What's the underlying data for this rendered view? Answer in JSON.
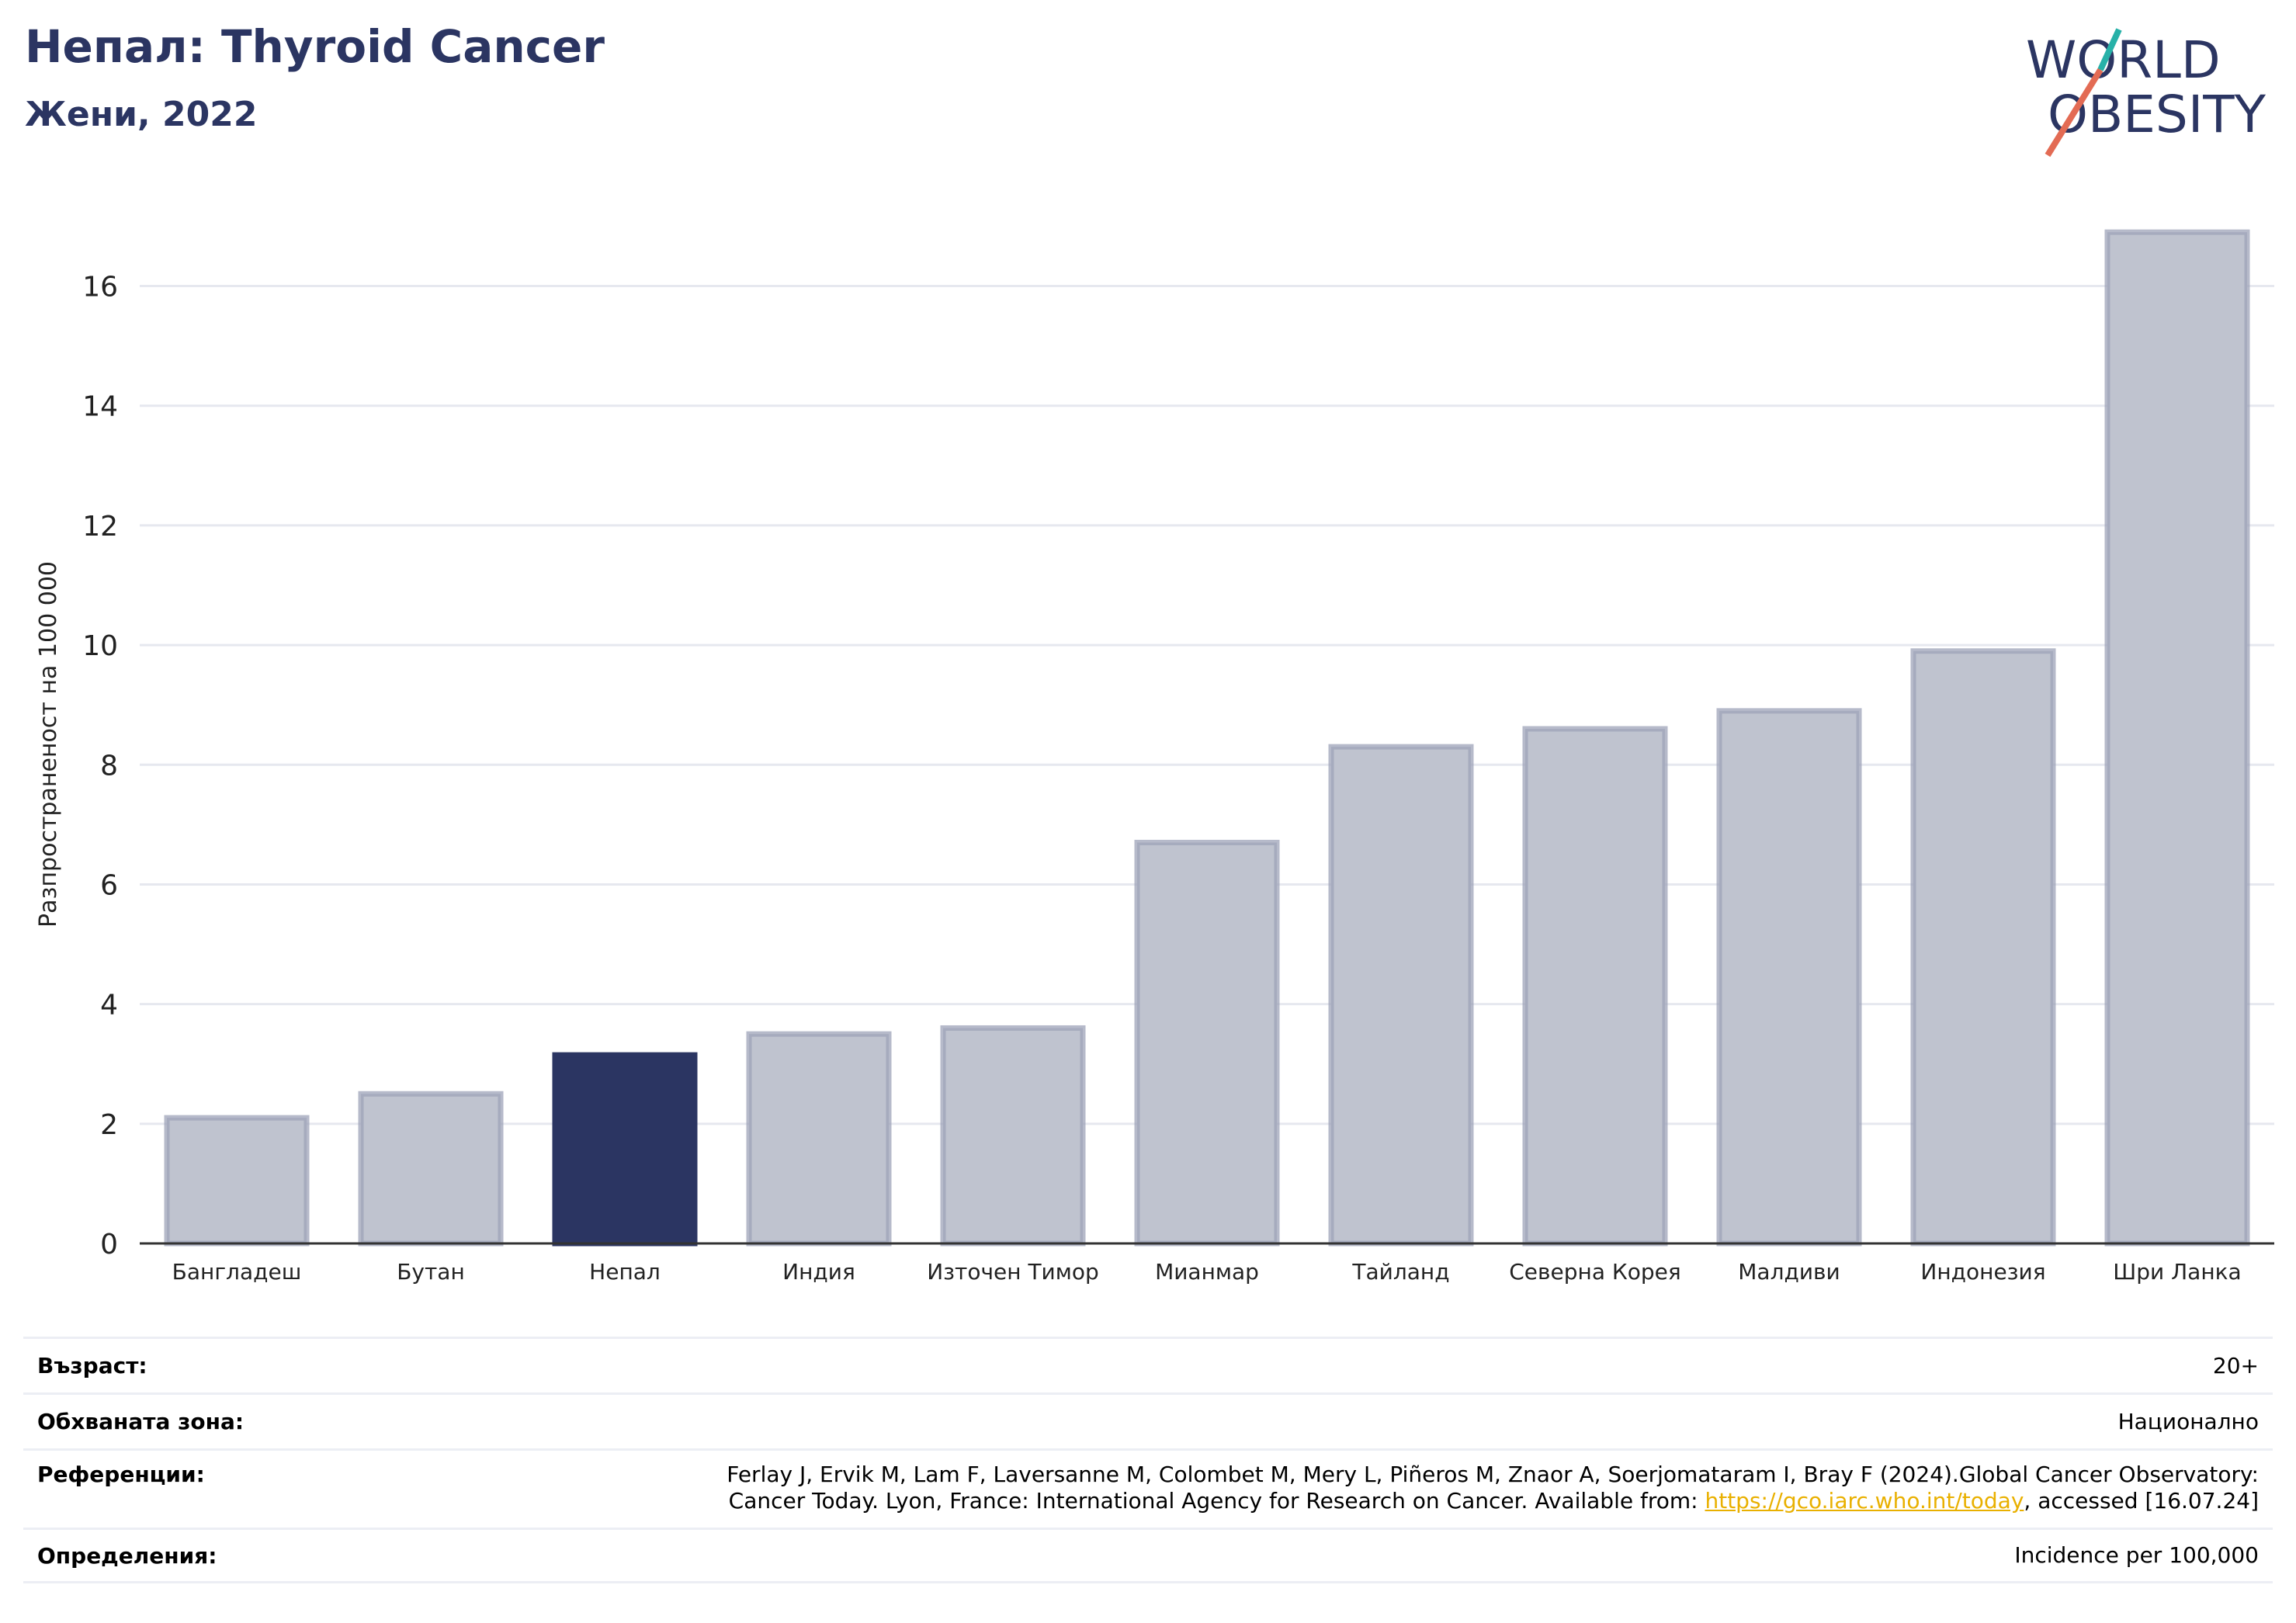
{
  "header": {
    "title": "Непал: Thyroid Cancer",
    "subtitle": "Жени, 2022"
  },
  "logo": {
    "line1": "WORLD",
    "line2": "OBESITY"
  },
  "chart_data": {
    "type": "bar",
    "categories": [
      "Бангладеш",
      "Бутан",
      "Непал",
      "Индия",
      "Източен Тимор",
      "Мианмар",
      "Тайланд",
      "Северна Корея",
      "Малдиви",
      "Индонезия",
      "Шри Ланка"
    ],
    "values": [
      2.1,
      2.5,
      3.15,
      3.5,
      3.6,
      6.7,
      8.3,
      8.6,
      8.9,
      9.9,
      16.9
    ],
    "highlight": "Непал",
    "ylabel": "Разпространеност  на 100 000",
    "ylim": [
      0,
      17.2
    ],
    "yticks": [
      0,
      2,
      4,
      6,
      8,
      10,
      12,
      14,
      16
    ],
    "grid": true,
    "colors": {
      "bar": "#bfc3cf",
      "bar_edge": "#9ea3b8",
      "highlight": "#2b3562"
    }
  },
  "info": {
    "age_label": "Възраст:",
    "age_value": "20+",
    "area_label": "Обхваната зона:",
    "area_value": "Национално",
    "refs_label": "Референции:",
    "refs_line1": "Ferlay J, Ervik M, Lam F, Laversanne M, Colombet M, Mery L, Piñeros M, Znaor A, Soerjomataram I, Bray F (2024).Global Cancer Observatory:",
    "refs_line2_pre": "Cancer Today. Lyon, France: International Agency for Research on Cancer. Available from: ",
    "refs_link": "https://gco.iarc.who.int/today",
    "refs_line2_post": ", accessed [16.07.24]",
    "def_label": "Определения:",
    "def_value": "Incidence per 100,000"
  }
}
